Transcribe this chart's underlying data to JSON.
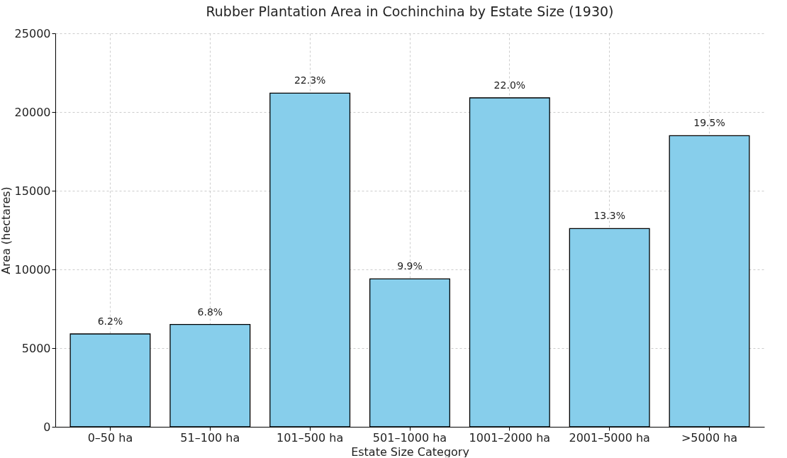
{
  "chart_data": {
    "type": "bar",
    "title": "Rubber Plantation Area in Cochinchina by Estate Size (1930)",
    "xlabel": "Estate Size Category",
    "ylabel": "Area (hectares)",
    "categories": [
      "0–50 ha",
      "51–100 ha",
      "101–500 ha",
      "501–1000 ha",
      "1001–2000 ha",
      "2001–5000 ha",
      ">5000 ha"
    ],
    "values": [
      5900,
      6500,
      21200,
      9400,
      20900,
      12600,
      18500
    ],
    "annotations": [
      {
        "text": "6.2%",
        "x": "0–50 ha",
        "y": 5900
      },
      {
        "text": "6.8%",
        "x": "51–100 ha",
        "y": 6500
      },
      {
        "text": "22.3%",
        "x": "101–500 ha",
        "y": 21200
      },
      {
        "text": "9.9%",
        "x": "501–1000 ha",
        "y": 9400
      },
      {
        "text": "22.0%",
        "x": "1001–2000 ha",
        "y": 20900
      },
      {
        "text": "13.3%",
        "x": "2001–5000 ha",
        "y": 12600
      },
      {
        "text": "19.5%",
        "x": ">5000 ha",
        "y": 18500
      }
    ],
    "color": "#87ceeb",
    "ylim": [
      0,
      25000
    ],
    "yticks": [
      0,
      5000,
      10000,
      15000,
      20000,
      25000
    ],
    "grid": true
  }
}
